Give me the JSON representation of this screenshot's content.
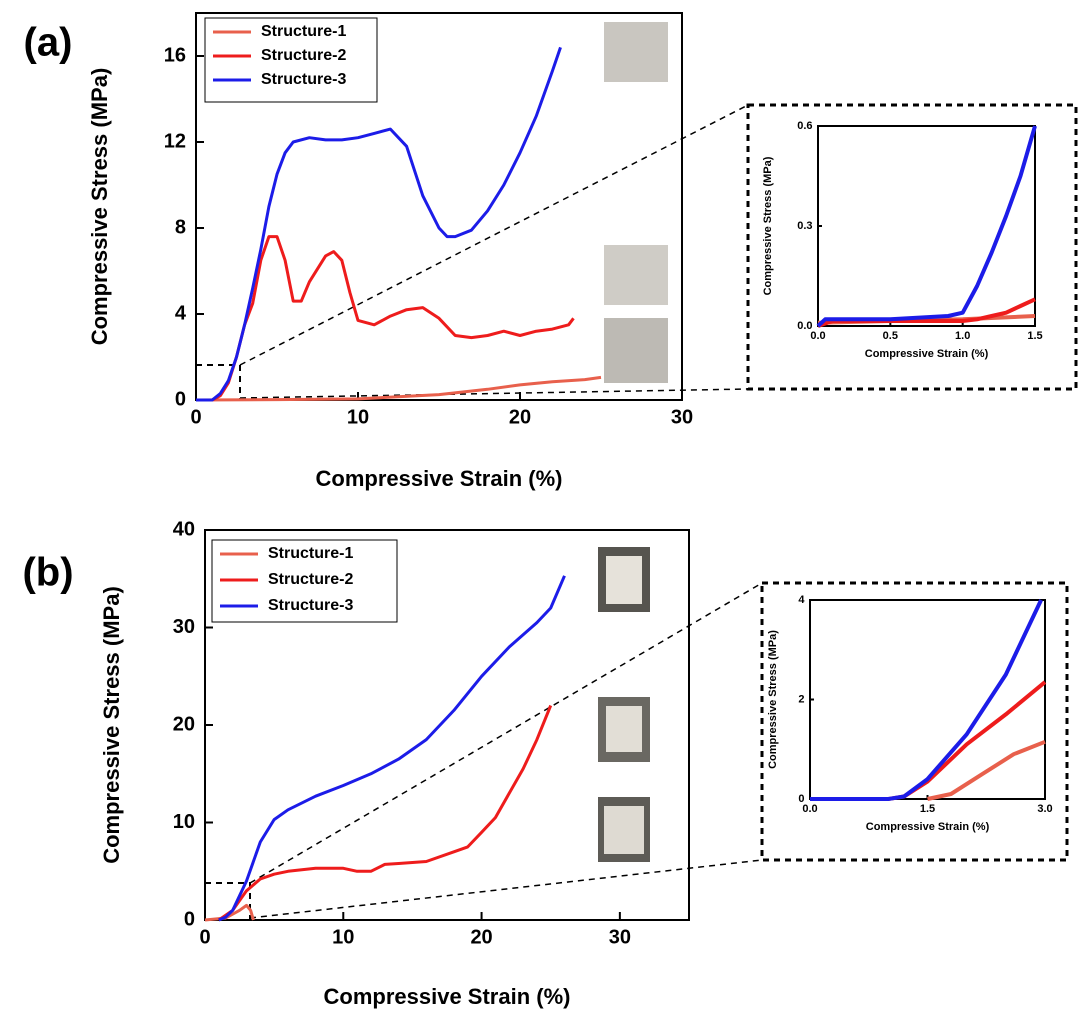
{
  "chart_data": [
    {
      "type": "line",
      "panel_label": "(a)",
      "x_label": "Compressive Strain (%)",
      "y_label": "Compressive Stress (MPa)",
      "xlim": [
        0,
        30
      ],
      "ylim": [
        0,
        18
      ],
      "xticks": [
        0,
        10,
        20,
        30
      ],
      "yticks": [
        0,
        4,
        8,
        12,
        16
      ],
      "legend": "upper left",
      "series": [
        {
          "name": "Structure-1",
          "color": "#e8604c",
          "x": [
            0,
            5,
            10,
            15,
            18,
            20,
            22,
            24,
            25
          ],
          "values": [
            0,
            0.02,
            0.05,
            0.25,
            0.5,
            0.7,
            0.85,
            0.95,
            1.05
          ]
        },
        {
          "name": "Structure-2",
          "color": "#ee1c1c",
          "x": [
            0,
            1,
            1.5,
            2,
            2.5,
            3,
            3.5,
            4,
            4.5,
            5,
            5.5,
            6,
            6.5,
            7,
            8,
            8.5,
            9,
            9.5,
            10,
            11,
            12,
            13,
            14,
            15,
            16,
            17,
            18,
            19,
            20,
            21,
            22,
            23,
            23.3
          ],
          "values": [
            0,
            0,
            0.2,
            0.8,
            2,
            3.5,
            4.5,
            6.5,
            7.6,
            7.6,
            6.5,
            4.6,
            4.6,
            5.5,
            6.7,
            6.9,
            6.5,
            5,
            3.7,
            3.5,
            3.9,
            4.2,
            4.3,
            3.8,
            3,
            2.9,
            3,
            3.2,
            3,
            3.2,
            3.3,
            3.5,
            3.8
          ]
        },
        {
          "name": "Structure-3",
          "color": "#1c1ce8",
          "x": [
            0,
            1,
            1.5,
            2,
            2.5,
            3,
            3.5,
            4,
            4.5,
            5,
            5.5,
            6,
            7,
            8,
            9,
            10,
            11,
            12,
            13,
            14,
            15,
            15.5,
            16,
            17,
            18,
            19,
            20,
            21,
            22,
            22.5
          ],
          "values": [
            0,
            0,
            0.3,
            0.9,
            2,
            3.5,
            5.2,
            7,
            9,
            10.5,
            11.5,
            12,
            12.2,
            12.1,
            12.1,
            12.2,
            12.4,
            12.6,
            11.8,
            9.5,
            8,
            7.6,
            7.6,
            7.9,
            8.8,
            10,
            11.5,
            13.2,
            15.3,
            16.4
          ]
        }
      ]
    },
    {
      "type": "line",
      "x_label": "Compressive Strain (%)",
      "y_label": "Compressive Stress (MPa)",
      "xlim": [
        0,
        1.5
      ],
      "ylim": [
        0,
        0.6
      ],
      "xticks": [
        {
          "value": 0,
          "label": "0.0"
        },
        0.5,
        {
          "value": 1,
          "label": "1.0"
        },
        1.5
      ],
      "yticks": [
        {
          "value": 0,
          "label": "0.0"
        },
        0.3,
        0.6
      ],
      "series": [
        {
          "color": "#e8604c",
          "x": [
            0,
            1,
            1.5
          ],
          "values": [
            0.01,
            0.02,
            0.03
          ]
        },
        {
          "color": "#ee1c1c",
          "x": [
            0,
            0.1,
            1,
            1.1,
            1.2,
            1.3,
            1.4,
            1.5
          ],
          "values": [
            0,
            0.015,
            0.015,
            0.02,
            0.03,
            0.04,
            0.06,
            0.08
          ]
        },
        {
          "color": "#1c1ce8",
          "x": [
            0,
            0.05,
            0.5,
            0.9,
            1,
            1.1,
            1.2,
            1.3,
            1.4,
            1.5
          ],
          "values": [
            0,
            0.02,
            0.02,
            0.03,
            0.04,
            0.12,
            0.22,
            0.33,
            0.45,
            0.6
          ]
        }
      ]
    },
    {
      "type": "line",
      "panel_label": "(b)",
      "x_label": "Compressive Strain (%)",
      "y_label": "Compressive Stress (MPa)",
      "xlim": [
        0,
        35
      ],
      "ylim": [
        0,
        40
      ],
      "xticks": [
        0,
        10,
        20,
        30
      ],
      "yticks": [
        0,
        10,
        20,
        30,
        40
      ],
      "legend": "upper left",
      "series": [
        {
          "name": "Structure-1",
          "color": "#e8604c",
          "x": [
            0,
            1.5,
            2.5,
            3,
            3.3,
            3.5
          ],
          "values": [
            0,
            0.2,
            1,
            1.5,
            1,
            0
          ]
        },
        {
          "name": "Structure-2",
          "color": "#ee1c1c",
          "x": [
            1,
            2,
            3,
            4,
            5,
            6,
            8,
            10,
            11,
            12,
            13,
            14,
            16,
            18,
            19,
            20,
            21,
            22,
            23,
            24,
            25
          ],
          "values": [
            0,
            1,
            3,
            4.2,
            4.7,
            5,
            5.3,
            5.3,
            5,
            5,
            5.7,
            5.8,
            6,
            7,
            7.5,
            9,
            10.5,
            13,
            15.5,
            18.5,
            22
          ]
        },
        {
          "name": "Structure-3",
          "color": "#1c1ce8",
          "x": [
            1,
            1.5,
            2,
            3,
            4,
            5,
            6,
            8,
            10,
            12,
            14,
            16,
            18,
            20,
            22,
            24,
            25,
            26
          ],
          "values": [
            0,
            0.3,
            1,
            4,
            8,
            10.3,
            11.3,
            12.7,
            13.8,
            15,
            16.5,
            18.5,
            21.5,
            25,
            28,
            30.5,
            32,
            35.3
          ]
        }
      ]
    },
    {
      "type": "line",
      "x_label": "Compressive Strain (%)",
      "y_label": "Compressive Stress (MPa)",
      "xlim": [
        0,
        3
      ],
      "ylim": [
        0,
        4
      ],
      "xticks": [
        {
          "value": 0,
          "label": "0.0"
        },
        1.5,
        {
          "value": 3,
          "label": "3.0"
        }
      ],
      "yticks": [
        0,
        2,
        4
      ],
      "series": [
        {
          "color": "#e8604c",
          "x": [
            1.5,
            1.8,
            2.2,
            2.6,
            3
          ],
          "values": [
            0,
            0.1,
            0.5,
            0.9,
            1.15
          ]
        },
        {
          "color": "#ee1c1c",
          "x": [
            0,
            1,
            1.2,
            1.5,
            2,
            2.5,
            3
          ],
          "values": [
            0,
            0,
            0.05,
            0.35,
            1.1,
            1.7,
            2.35
          ]
        },
        {
          "color": "#1c1ce8",
          "x": [
            0,
            1,
            1.2,
            1.5,
            2,
            2.5,
            2.95
          ],
          "values": [
            0,
            0,
            0.05,
            0.4,
            1.3,
            2.5,
            4
          ]
        }
      ]
    }
  ]
}
